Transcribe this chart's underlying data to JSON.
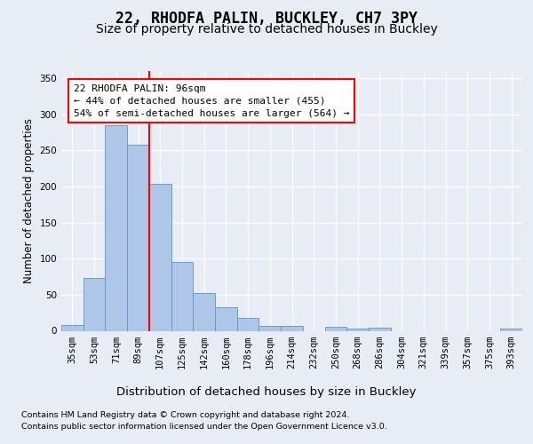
{
  "title1": "22, RHODFA PALIN, BUCKLEY, CH7 3PY",
  "title2": "Size of property relative to detached houses in Buckley",
  "xlabel": "Distribution of detached houses by size in Buckley",
  "ylabel": "Number of detached properties",
  "categories": [
    "35sqm",
    "53sqm",
    "71sqm",
    "89sqm",
    "107sqm",
    "125sqm",
    "142sqm",
    "160sqm",
    "178sqm",
    "196sqm",
    "214sqm",
    "232sqm",
    "250sqm",
    "268sqm",
    "286sqm",
    "304sqm",
    "321sqm",
    "339sqm",
    "357sqm",
    "375sqm",
    "393sqm"
  ],
  "values": [
    8,
    73,
    285,
    258,
    204,
    95,
    52,
    33,
    18,
    7,
    7,
    0,
    5,
    3,
    4,
    0,
    0,
    0,
    0,
    0,
    3
  ],
  "bar_color": "#aec6e8",
  "bar_edge_color": "#5a96c8",
  "red_line_index": 3,
  "annotation_text": "22 RHODFA PALIN: 96sqm\n← 44% of detached houses are smaller (455)\n54% of semi-detached houses are larger (564) →",
  "footnote1": "Contains HM Land Registry data © Crown copyright and database right 2024.",
  "footnote2": "Contains public sector information licensed under the Open Government Licence v3.0.",
  "ylim": [
    0,
    360
  ],
  "yticks": [
    0,
    50,
    100,
    150,
    200,
    250,
    300,
    350
  ],
  "background_color": "#e8edf5",
  "plot_background": "#e8edf5",
  "grid_color": "#ffffff",
  "title1_fontsize": 12,
  "title2_fontsize": 10,
  "xlabel_fontsize": 9.5,
  "ylabel_fontsize": 8.5,
  "tick_fontsize": 7.5,
  "annotation_fontsize": 8,
  "footnote_fontsize": 6.8
}
